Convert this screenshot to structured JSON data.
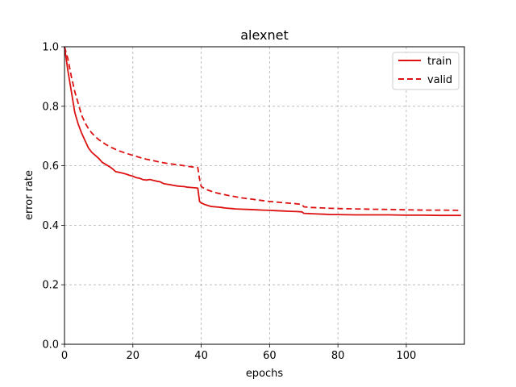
{
  "chart_data": {
    "type": "line",
    "title": "alexnet",
    "xlabel": "epochs",
    "ylabel": "error rate",
    "xlim": [
      0,
      117
    ],
    "ylim": [
      0.0,
      1.0
    ],
    "xticks": [
      0,
      20,
      40,
      60,
      80,
      100
    ],
    "xtick_labels": [
      "0",
      "20",
      "40",
      "60",
      "80",
      "100"
    ],
    "yticks": [
      0.0,
      0.2,
      0.4,
      0.6,
      0.8,
      1.0
    ],
    "ytick_labels": [
      "0.0",
      "0.2",
      "0.4",
      "0.6",
      "0.8",
      "1.0"
    ],
    "grid": true,
    "legend_position": "top-right",
    "series": [
      {
        "name": "train",
        "color": "#dd1111",
        "dash": "solid",
        "points": [
          [
            0,
            1.0
          ],
          [
            1,
            0.92
          ],
          [
            2,
            0.85
          ],
          [
            3,
            0.78
          ],
          [
            4,
            0.74
          ],
          [
            5,
            0.71
          ],
          [
            6,
            0.685
          ],
          [
            7,
            0.66
          ],
          [
            8,
            0.645
          ],
          [
            9,
            0.635
          ],
          [
            10,
            0.625
          ],
          [
            11,
            0.612
          ],
          [
            12,
            0.605
          ],
          [
            13,
            0.598
          ],
          [
            14,
            0.59
          ],
          [
            15,
            0.58
          ],
          [
            16,
            0.578
          ],
          [
            17,
            0.575
          ],
          [
            18,
            0.572
          ],
          [
            19,
            0.568
          ],
          [
            20,
            0.565
          ],
          [
            21,
            0.56
          ],
          [
            22,
            0.558
          ],
          [
            23,
            0.553
          ],
          [
            24,
            0.552
          ],
          [
            25,
            0.554
          ],
          [
            26,
            0.551
          ],
          [
            27,
            0.548
          ],
          [
            28,
            0.546
          ],
          [
            29,
            0.54
          ],
          [
            30,
            0.538
          ],
          [
            31,
            0.536
          ],
          [
            32,
            0.534
          ],
          [
            33,
            0.532
          ],
          [
            34,
            0.531
          ],
          [
            35,
            0.53
          ],
          [
            36,
            0.528
          ],
          [
            37,
            0.527
          ],
          [
            38,
            0.526
          ],
          [
            39,
            0.525
          ],
          [
            39.5,
            0.48
          ],
          [
            40,
            0.475
          ],
          [
            41,
            0.47
          ],
          [
            42,
            0.466
          ],
          [
            43,
            0.463
          ],
          [
            44,
            0.462
          ],
          [
            45,
            0.461
          ],
          [
            46,
            0.46
          ],
          [
            47,
            0.458
          ],
          [
            48,
            0.457
          ],
          [
            49,
            0.456
          ],
          [
            50,
            0.455
          ],
          [
            52,
            0.454
          ],
          [
            54,
            0.453
          ],
          [
            56,
            0.452
          ],
          [
            58,
            0.451
          ],
          [
            60,
            0.45
          ],
          [
            62,
            0.449
          ],
          [
            64,
            0.448
          ],
          [
            66,
            0.447
          ],
          [
            68,
            0.446
          ],
          [
            69.5,
            0.445
          ],
          [
            70,
            0.44
          ],
          [
            72,
            0.439
          ],
          [
            74,
            0.438
          ],
          [
            76,
            0.437
          ],
          [
            78,
            0.436
          ],
          [
            80,
            0.436
          ],
          [
            85,
            0.435
          ],
          [
            90,
            0.435
          ],
          [
            95,
            0.435
          ],
          [
            100,
            0.434
          ],
          [
            105,
            0.434
          ],
          [
            110,
            0.433
          ],
          [
            116,
            0.433
          ]
        ]
      },
      {
        "name": "valid",
        "color": "#dd1111",
        "dash": "dashed",
        "points": [
          [
            0,
            1.0
          ],
          [
            1,
            0.96
          ],
          [
            2,
            0.9
          ],
          [
            3,
            0.85
          ],
          [
            4,
            0.81
          ],
          [
            5,
            0.77
          ],
          [
            6,
            0.745
          ],
          [
            7,
            0.725
          ],
          [
            8,
            0.71
          ],
          [
            9,
            0.698
          ],
          [
            10,
            0.688
          ],
          [
            12,
            0.672
          ],
          [
            14,
            0.66
          ],
          [
            16,
            0.65
          ],
          [
            18,
            0.642
          ],
          [
            20,
            0.635
          ],
          [
            22,
            0.628
          ],
          [
            24,
            0.622
          ],
          [
            26,
            0.617
          ],
          [
            28,
            0.612
          ],
          [
            30,
            0.608
          ],
          [
            32,
            0.605
          ],
          [
            34,
            0.602
          ],
          [
            36,
            0.598
          ],
          [
            38,
            0.595
          ],
          [
            39,
            0.594
          ],
          [
            39.5,
            0.555
          ],
          [
            40,
            0.53
          ],
          [
            41,
            0.523
          ],
          [
            42,
            0.518
          ],
          [
            44,
            0.51
          ],
          [
            46,
            0.505
          ],
          [
            48,
            0.5
          ],
          [
            50,
            0.496
          ],
          [
            52,
            0.492
          ],
          [
            54,
            0.489
          ],
          [
            56,
            0.486
          ],
          [
            58,
            0.483
          ],
          [
            60,
            0.48
          ],
          [
            62,
            0.478
          ],
          [
            64,
            0.476
          ],
          [
            66,
            0.474
          ],
          [
            68,
            0.472
          ],
          [
            69.5,
            0.47
          ],
          [
            70,
            0.462
          ],
          [
            72,
            0.46
          ],
          [
            74,
            0.459
          ],
          [
            76,
            0.458
          ],
          [
            78,
            0.457
          ],
          [
            80,
            0.456
          ],
          [
            85,
            0.455
          ],
          [
            90,
            0.454
          ],
          [
            95,
            0.453
          ],
          [
            100,
            0.452
          ],
          [
            105,
            0.451
          ],
          [
            110,
            0.451
          ],
          [
            116,
            0.45
          ]
        ]
      }
    ]
  }
}
